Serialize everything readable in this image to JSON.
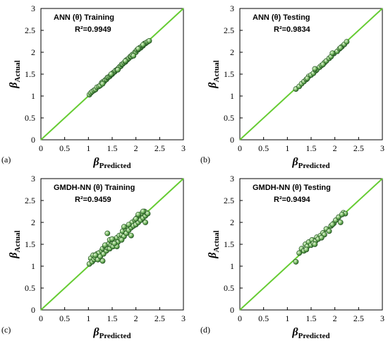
{
  "figure": {
    "ylabel_main": "β",
    "ylabel_sub": "Actual",
    "xlabel_main": "β",
    "xlabel_sub": "Predicted",
    "ideal_line_color": "#66cc33",
    "marker_fill": "#7fbf6a",
    "marker_stroke": "#1e4d1e"
  },
  "chart_data": [
    {
      "type": "scatter",
      "panel_label": "(a)",
      "title": "ANN (θ) Training",
      "r2_text": "R²=0.9949",
      "xlim": [
        0,
        3
      ],
      "ylim": [
        0,
        3
      ],
      "xticks": [
        "0",
        "0.5",
        "1",
        "1.5",
        "2",
        "2.5",
        "3"
      ],
      "yticks": [
        "0",
        "0.5",
        "1",
        "1.5",
        "2",
        "2.5",
        "3"
      ],
      "x": [
        1.02,
        1.05,
        1.08,
        1.12,
        1.15,
        1.18,
        1.22,
        1.25,
        1.28,
        1.3,
        1.33,
        1.35,
        1.38,
        1.4,
        1.42,
        1.45,
        1.47,
        1.5,
        1.52,
        1.55,
        1.57,
        1.6,
        1.62,
        1.65,
        1.68,
        1.7,
        1.72,
        1.75,
        1.78,
        1.8,
        1.82,
        1.85,
        1.88,
        1.9,
        1.92,
        1.95,
        1.98,
        2.0,
        2.02,
        2.05,
        2.08,
        2.1,
        2.12,
        2.15,
        2.18,
        2.2,
        2.22,
        2.25,
        2.28,
        1.3,
        1.48,
        1.62,
        1.78,
        1.95,
        2.05,
        2.15
      ],
      "y": [
        1.03,
        1.07,
        1.1,
        1.13,
        1.15,
        1.2,
        1.22,
        1.24,
        1.3,
        1.32,
        1.33,
        1.36,
        1.38,
        1.42,
        1.43,
        1.45,
        1.48,
        1.5,
        1.53,
        1.55,
        1.58,
        1.6,
        1.62,
        1.66,
        1.68,
        1.72,
        1.73,
        1.76,
        1.78,
        1.82,
        1.83,
        1.86,
        1.9,
        1.9,
        1.94,
        1.96,
        2.0,
        2.0,
        2.05,
        2.06,
        2.1,
        2.1,
        2.13,
        2.15,
        2.2,
        2.2,
        2.22,
        2.24,
        2.26,
        1.28,
        1.5,
        1.6,
        1.8,
        1.92,
        2.08,
        2.17
      ]
    },
    {
      "type": "scatter",
      "panel_label": "(b)",
      "title": "ANN (θ) Testing",
      "r2_text": "R²=0.9834",
      "xlim": [
        0,
        3
      ],
      "ylim": [
        0,
        3
      ],
      "xticks": [
        "0",
        "0.5",
        "1",
        "1.5",
        "2",
        "2.5",
        "3"
      ],
      "yticks": [
        "0",
        "0.5",
        "1",
        "1.5",
        "2",
        "2.5",
        "3"
      ],
      "x": [
        1.18,
        1.25,
        1.3,
        1.35,
        1.4,
        1.45,
        1.5,
        1.55,
        1.6,
        1.62,
        1.68,
        1.72,
        1.78,
        1.82,
        1.88,
        1.92,
        1.98,
        2.05,
        2.1,
        2.15,
        2.2,
        2.25,
        1.42,
        1.58,
        1.75,
        1.95,
        2.12
      ],
      "y": [
        1.16,
        1.22,
        1.28,
        1.33,
        1.38,
        1.45,
        1.48,
        1.52,
        1.58,
        1.6,
        1.66,
        1.7,
        1.76,
        1.8,
        1.86,
        1.9,
        1.97,
        2.02,
        2.08,
        2.13,
        2.18,
        2.24,
        1.4,
        1.62,
        1.72,
        1.98,
        2.1
      ]
    },
    {
      "type": "scatter",
      "panel_label": "(c)",
      "title": "GMDH-NN (θ) Training",
      "r2_text": "R²=0.9459",
      "xlim": [
        0,
        3
      ],
      "ylim": [
        0,
        3
      ],
      "xticks": [
        "0",
        "0.5",
        "1",
        "1.5",
        "2",
        "2.5",
        "3"
      ],
      "yticks": [
        "0",
        "0.5",
        "1",
        "1.5",
        "2",
        "2.5",
        "3"
      ],
      "x": [
        1.02,
        1.05,
        1.08,
        1.1,
        1.12,
        1.15,
        1.18,
        1.2,
        1.22,
        1.25,
        1.28,
        1.3,
        1.32,
        1.35,
        1.38,
        1.4,
        1.42,
        1.45,
        1.48,
        1.5,
        1.52,
        1.55,
        1.58,
        1.6,
        1.62,
        1.65,
        1.68,
        1.7,
        1.72,
        1.75,
        1.78,
        1.8,
        1.82,
        1.85,
        1.88,
        1.9,
        1.92,
        1.95,
        1.98,
        2.0,
        2.02,
        2.05,
        2.08,
        2.1,
        2.12,
        2.15,
        2.18,
        2.2,
        2.22,
        2.25,
        1.3,
        1.45,
        1.6,
        1.75,
        1.9,
        2.05,
        2.2,
        1.15,
        1.35,
        1.5,
        1.7,
        1.85,
        2.0,
        2.15,
        1.4,
        1.55
      ],
      "y": [
        1.05,
        1.18,
        1.1,
        1.25,
        1.15,
        1.2,
        1.28,
        1.15,
        1.3,
        1.22,
        1.35,
        1.4,
        1.28,
        1.45,
        1.35,
        1.42,
        1.5,
        1.4,
        1.48,
        1.55,
        1.45,
        1.58,
        1.5,
        1.65,
        1.55,
        1.7,
        1.62,
        1.72,
        1.8,
        1.68,
        1.85,
        1.75,
        1.9,
        1.82,
        1.95,
        1.88,
        2.0,
        1.92,
        2.05,
        1.95,
        2.1,
        2.0,
        2.15,
        2.05,
        2.2,
        2.1,
        2.25,
        2.15,
        2.22,
        2.2,
        1.12,
        1.6,
        1.45,
        1.9,
        1.7,
        2.18,
        2.0,
        1.25,
        1.48,
        1.62,
        1.6,
        1.95,
        2.08,
        2.25,
        1.75,
        1.52
      ]
    },
    {
      "type": "scatter",
      "panel_label": "(d)",
      "title": "GMDH-NN (θ) Testing",
      "r2_text": "R²=0.9494",
      "xlim": [
        0,
        3
      ],
      "ylim": [
        0,
        3
      ],
      "xticks": [
        "0",
        "0.5",
        "1",
        "1.5",
        "2",
        "2.5",
        "3"
      ],
      "yticks": [
        "0",
        "0.5",
        "1",
        "1.5",
        "2",
        "2.5",
        "3"
      ],
      "x": [
        1.18,
        1.25,
        1.3,
        1.35,
        1.38,
        1.42,
        1.45,
        1.5,
        1.52,
        1.55,
        1.6,
        1.62,
        1.65,
        1.7,
        1.75,
        1.78,
        1.82,
        1.88,
        1.92,
        1.98,
        2.02,
        2.08,
        2.12,
        2.18,
        2.22,
        1.4,
        1.58,
        1.72,
        1.95,
        2.15
      ],
      "y": [
        1.1,
        1.3,
        1.4,
        1.35,
        1.5,
        1.45,
        1.55,
        1.48,
        1.6,
        1.52,
        1.58,
        1.66,
        1.62,
        1.7,
        1.76,
        1.72,
        1.85,
        1.8,
        1.92,
        1.98,
        2.05,
        2.12,
        2.0,
        2.22,
        2.2,
        1.38,
        1.5,
        1.65,
        1.95,
        2.18
      ]
    }
  ]
}
